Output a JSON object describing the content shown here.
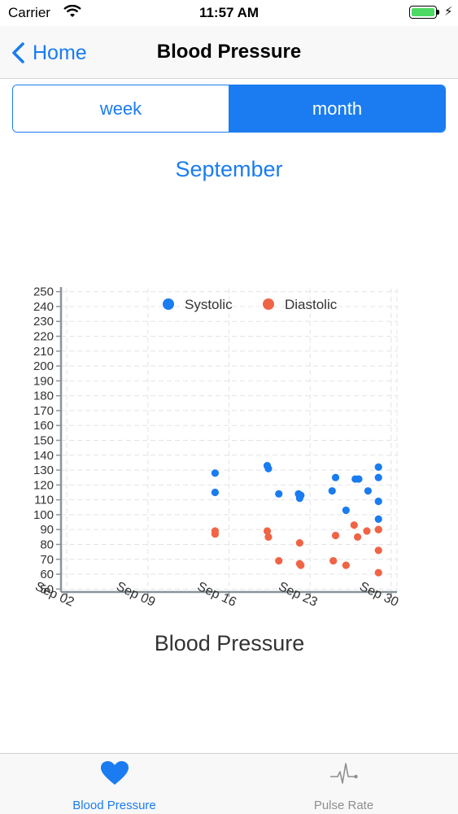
{
  "status_bar": {
    "carrier": "Carrier",
    "time": "11:57 AM"
  },
  "nav": {
    "back_label": "Home",
    "title": "Blood Pressure"
  },
  "segment": {
    "options": [
      "week",
      "month"
    ],
    "selected": "month"
  },
  "month_title": "September",
  "colors": {
    "accent": "#1a7cf0",
    "systolic": "#1a7cf0",
    "diastolic": "#f06446"
  },
  "chart_data": {
    "type": "scatter",
    "title": "",
    "xlabel": "Blood Pressure",
    "ylabel": "",
    "x_ticks": [
      "Sep 02",
      "Sep 09",
      "Sep 16",
      "Sep 23",
      "Sep 30"
    ],
    "y_ticks": [
      50,
      60,
      70,
      80,
      90,
      100,
      110,
      120,
      130,
      140,
      150,
      160,
      170,
      180,
      190,
      200,
      210,
      220,
      230,
      240,
      250
    ],
    "ylim": [
      48,
      252
    ],
    "xlim_days": [
      1.5,
      30.5
    ],
    "legend_position": "top",
    "grid": true,
    "series": [
      {
        "name": "Systolic",
        "color": "#1a7cf0",
        "points": [
          {
            "day": 14.8,
            "value": 128
          },
          {
            "day": 14.8,
            "value": 115
          },
          {
            "day": 19.3,
            "value": 133
          },
          {
            "day": 19.4,
            "value": 131
          },
          {
            "day": 20.3,
            "value": 114
          },
          {
            "day": 22.0,
            "value": 114
          },
          {
            "day": 22.1,
            "value": 111
          },
          {
            "day": 22.2,
            "value": 113
          },
          {
            "day": 24.9,
            "value": 116
          },
          {
            "day": 25.2,
            "value": 125
          },
          {
            "day": 26.1,
            "value": 103
          },
          {
            "day": 26.9,
            "value": 124
          },
          {
            "day": 27.2,
            "value": 124
          },
          {
            "day": 28.0,
            "value": 116
          },
          {
            "day": 28.9,
            "value": 132
          },
          {
            "day": 28.9,
            "value": 125
          },
          {
            "day": 28.9,
            "value": 109
          },
          {
            "day": 28.9,
            "value": 97
          }
        ]
      },
      {
        "name": "Diastolic",
        "color": "#f06446",
        "points": [
          {
            "day": 14.8,
            "value": 89
          },
          {
            "day": 14.8,
            "value": 87
          },
          {
            "day": 19.3,
            "value": 89
          },
          {
            "day": 19.4,
            "value": 85
          },
          {
            "day": 20.3,
            "value": 69
          },
          {
            "day": 22.1,
            "value": 81
          },
          {
            "day": 22.1,
            "value": 67
          },
          {
            "day": 22.2,
            "value": 66
          },
          {
            "day": 25.0,
            "value": 69
          },
          {
            "day": 25.2,
            "value": 86
          },
          {
            "day": 26.1,
            "value": 66
          },
          {
            "day": 26.8,
            "value": 93
          },
          {
            "day": 27.1,
            "value": 85
          },
          {
            "day": 27.9,
            "value": 89
          },
          {
            "day": 28.9,
            "value": 90
          },
          {
            "day": 28.9,
            "value": 90
          },
          {
            "day": 28.9,
            "value": 76
          },
          {
            "day": 28.9,
            "value": 61
          }
        ]
      }
    ]
  },
  "tabbar": {
    "items": [
      {
        "label": "Blood Pressure",
        "icon": "heart-icon",
        "selected": true
      },
      {
        "label": "Pulse Rate",
        "icon": "pulse-icon",
        "selected": false
      }
    ]
  }
}
